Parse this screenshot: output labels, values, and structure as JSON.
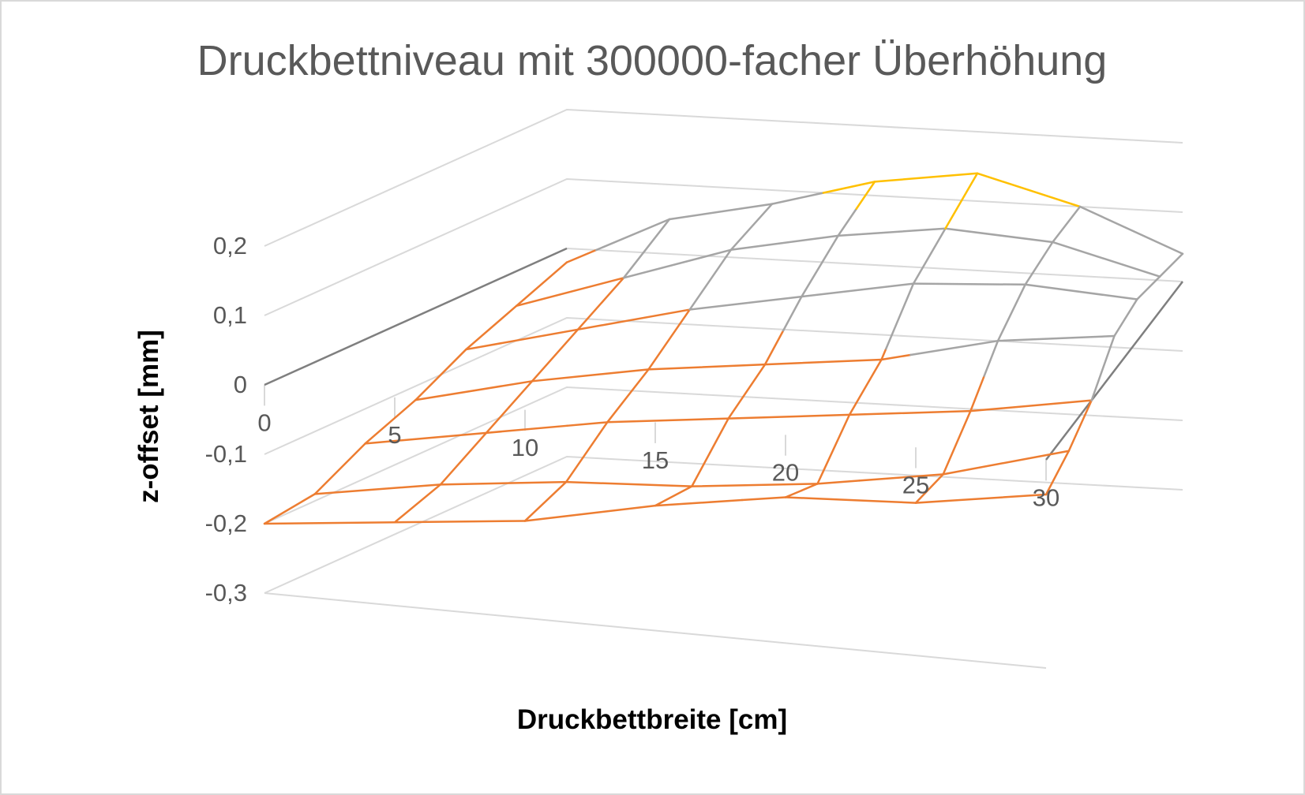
{
  "chart_data": {
    "type": "surface-wireframe",
    "title": "Druckbettniveau mit 300000-facher Überhöhung",
    "xlabel": "Druckbettbreite [cm]",
    "zlabel": "z-offset [mm]",
    "x_ticks": [
      "0",
      "5",
      "10",
      "15",
      "20",
      "25",
      "30"
    ],
    "z_ticks": [
      "0,2",
      "0,1",
      "0",
      "-0,1",
      "-0,2",
      "-0,3"
    ],
    "zlim": [
      -0.3,
      0.2
    ],
    "x": [
      0,
      5,
      10,
      15,
      20,
      25,
      30
    ],
    "rows": 7,
    "z": [
      [
        -0.2,
        -0.18,
        -0.16,
        -0.12,
        -0.09,
        -0.08,
        -0.05
      ],
      [
        -0.19,
        -0.16,
        -0.14,
        -0.13,
        -0.11,
        -0.08,
        -0.03
      ],
      [
        -0.15,
        -0.12,
        -0.09,
        -0.07,
        -0.05,
        -0.03,
        0.0
      ],
      [
        -0.12,
        -0.08,
        -0.05,
        -0.03,
        -0.01,
        0.03,
        0.05
      ],
      [
        -0.08,
        -0.04,
        0.0,
        0.03,
        0.06,
        0.07,
        0.06
      ],
      [
        -0.05,
        0.0,
        0.05,
        0.08,
        0.1,
        0.09,
        0.05
      ],
      [
        -0.02,
        0.05,
        0.08,
        0.12,
        0.14,
        0.1,
        0.04
      ]
    ],
    "bands": [
      {
        "range": [
          -0.3,
          -0.2
        ],
        "color": "#5B9BD5"
      },
      {
        "range": [
          -0.2,
          -0.1
        ],
        "color": "#ED7D31"
      },
      {
        "range": [
          -0.1,
          0.0
        ],
        "color": "#ED7D31"
      },
      {
        "range": [
          0.0,
          0.1
        ],
        "color": "#A5A5A5"
      },
      {
        "range": [
          0.1,
          0.2
        ],
        "color": "#FFC000"
      },
      {
        "range": [
          0.2,
          0.3
        ],
        "color": "#4472C4"
      }
    ],
    "grid": true
  }
}
